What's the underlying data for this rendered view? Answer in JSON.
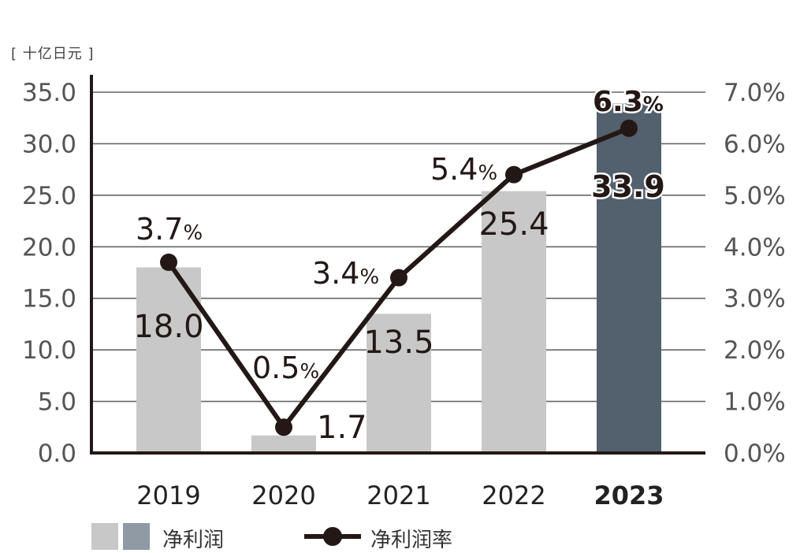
{
  "unit_label": "[ 十亿日元 ]",
  "legend": {
    "bar_label": "净利润",
    "line_label": "净利润率"
  },
  "colors": {
    "bar": "#c8c8c8",
    "bar_highlight": "#53606e",
    "legend_highlight_swatch": "#8f9aa5",
    "line": "#231815",
    "grid": "#666666",
    "axis": "#231815",
    "tick_text": "#555555"
  },
  "chart_data": {
    "type": "bar",
    "categories": [
      "2019",
      "2020",
      "2021",
      "2022",
      "2023"
    ],
    "highlight_category": "2023",
    "series": [
      {
        "name": "净利润",
        "type": "bar",
        "values": [
          18.0,
          1.7,
          13.5,
          25.4,
          33.9
        ],
        "labels": [
          "18.0",
          "1.7",
          "13.5",
          "25.4",
          "33.9"
        ]
      },
      {
        "name": "净利润率",
        "type": "line",
        "axis": "right",
        "values": [
          3.7,
          0.5,
          3.4,
          5.4,
          6.3
        ],
        "labels": [
          "3.7",
          "0.5",
          "3.4",
          "5.4",
          "6.3"
        ],
        "label_suffix": "%"
      }
    ],
    "y_left": {
      "ylim": [
        0,
        35
      ],
      "ticks": [
        "0.0",
        "5.0",
        "10.0",
        "15.0",
        "20.0",
        "25.0",
        "30.0",
        "35.0"
      ]
    },
    "y_right": {
      "ylim": [
        0,
        7
      ],
      "ticks": [
        "0.0%",
        "1.0%",
        "2.0%",
        "3.0%",
        "4.0%",
        "5.0%",
        "6.0%",
        "7.0%"
      ]
    },
    "grid": true
  }
}
